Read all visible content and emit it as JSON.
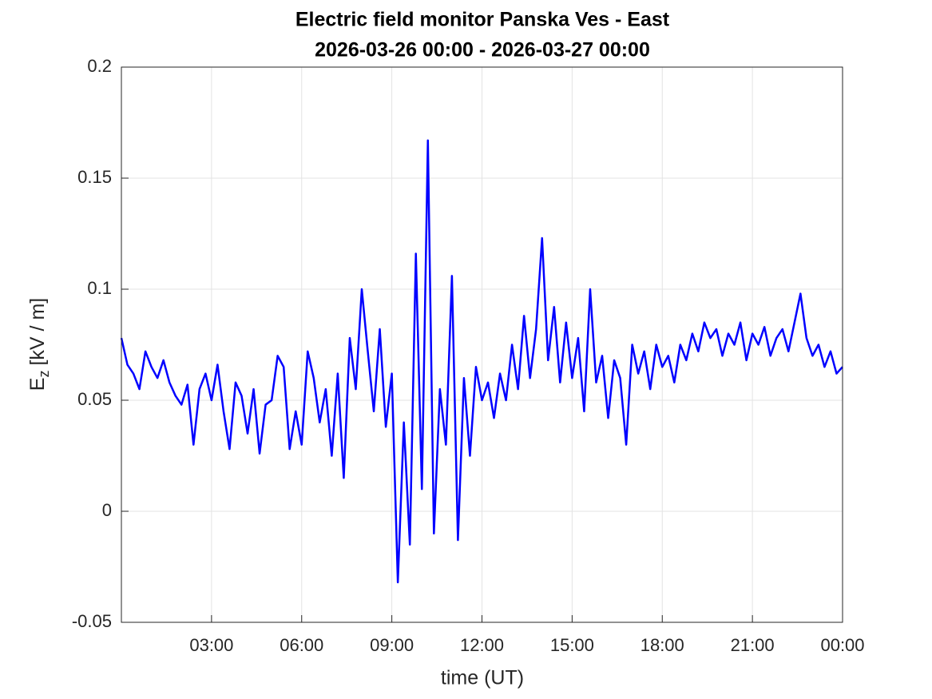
{
  "chart_data": {
    "type": "line",
    "title": "Electric field monitor Panska Ves - East",
    "subtitle": "2026-03-26 00:00 - 2026-03-27 00:00",
    "xlabel": "time (UT)",
    "ylabel": "E",
    "ylabel_subscript": "z",
    "ylabel_unit": "[kV / m]",
    "color": "#0000ff",
    "grid": true,
    "xlim": [
      0,
      24
    ],
    "xticks": [
      {
        "value": 3,
        "label": "03:00"
      },
      {
        "value": 6,
        "label": "06:00"
      },
      {
        "value": 9,
        "label": "09:00"
      },
      {
        "value": 12,
        "label": "12:00"
      },
      {
        "value": 15,
        "label": "15:00"
      },
      {
        "value": 18,
        "label": "18:00"
      },
      {
        "value": 21,
        "label": "21:00"
      },
      {
        "value": 24,
        "label": "00:00"
      }
    ],
    "ylim": [
      -0.05,
      0.2
    ],
    "yticks": [
      -0.05,
      0,
      0.05,
      0.1,
      0.15,
      0.2
    ],
    "x": [
      0,
      0.2,
      0.4,
      0.6,
      0.8,
      1,
      1.2,
      1.4,
      1.6,
      1.8,
      2,
      2.2,
      2.4,
      2.6,
      2.8,
      3,
      3.2,
      3.4,
      3.6,
      3.8,
      4,
      4.2,
      4.4,
      4.6,
      4.8,
      5,
      5.2,
      5.4,
      5.6,
      5.8,
      6,
      6.2,
      6.4,
      6.6,
      6.8,
      7,
      7.2,
      7.4,
      7.6,
      7.8,
      8,
      8.2,
      8.4,
      8.6,
      8.8,
      9,
      9.2,
      9.4,
      9.6,
      9.8,
      10,
      10.2,
      10.4,
      10.6,
      10.8,
      11,
      11.2,
      11.4,
      11.6,
      11.8,
      12,
      12.2,
      12.4,
      12.6,
      12.8,
      13,
      13.2,
      13.4,
      13.6,
      13.8,
      14,
      14.2,
      14.4,
      14.6,
      14.8,
      15,
      15.2,
      15.4,
      15.6,
      15.8,
      16,
      16.2,
      16.4,
      16.6,
      16.8,
      17,
      17.2,
      17.4,
      17.6,
      17.8,
      18,
      18.2,
      18.4,
      18.6,
      18.8,
      19,
      19.2,
      19.4,
      19.6,
      19.8,
      20,
      20.2,
      20.4,
      20.6,
      20.8,
      21,
      21.2,
      21.4,
      21.6,
      21.8,
      22,
      22.2,
      22.4,
      22.6,
      22.8,
      23,
      23.2,
      23.4,
      23.6,
      23.8,
      24
    ],
    "values": [
      0.078,
      0.066,
      0.062,
      0.055,
      0.072,
      0.065,
      0.06,
      0.068,
      0.058,
      0.052,
      0.048,
      0.057,
      0.03,
      0.055,
      0.062,
      0.05,
      0.066,
      0.045,
      0.028,
      0.058,
      0.052,
      0.035,
      0.055,
      0.026,
      0.048,
      0.05,
      0.07,
      0.065,
      0.028,
      0.045,
      0.03,
      0.072,
      0.06,
      0.04,
      0.055,
      0.025,
      0.062,
      0.015,
      0.078,
      0.055,
      0.1,
      0.072,
      0.045,
      0.082,
      0.038,
      0.062,
      -0.032,
      0.04,
      -0.015,
      0.116,
      0.01,
      0.167,
      -0.01,
      0.055,
      0.03,
      0.106,
      -0.013,
      0.06,
      0.025,
      0.065,
      0.05,
      0.058,
      0.042,
      0.062,
      0.05,
      0.075,
      0.055,
      0.088,
      0.06,
      0.082,
      0.123,
      0.068,
      0.092,
      0.058,
      0.085,
      0.06,
      0.078,
      0.045,
      0.1,
      0.058,
      0.07,
      0.042,
      0.068,
      0.06,
      0.03,
      0.075,
      0.062,
      0.072,
      0.055,
      0.075,
      0.065,
      0.07,
      0.058,
      0.075,
      0.068,
      0.08,
      0.072,
      0.085,
      0.078,
      0.082,
      0.07,
      0.08,
      0.075,
      0.085,
      0.068,
      0.08,
      0.075,
      0.083,
      0.07,
      0.078,
      0.082,
      0.072,
      0.085,
      0.098,
      0.078,
      0.07,
      0.075,
      0.065,
      0.072,
      0.062,
      0.065
    ]
  }
}
